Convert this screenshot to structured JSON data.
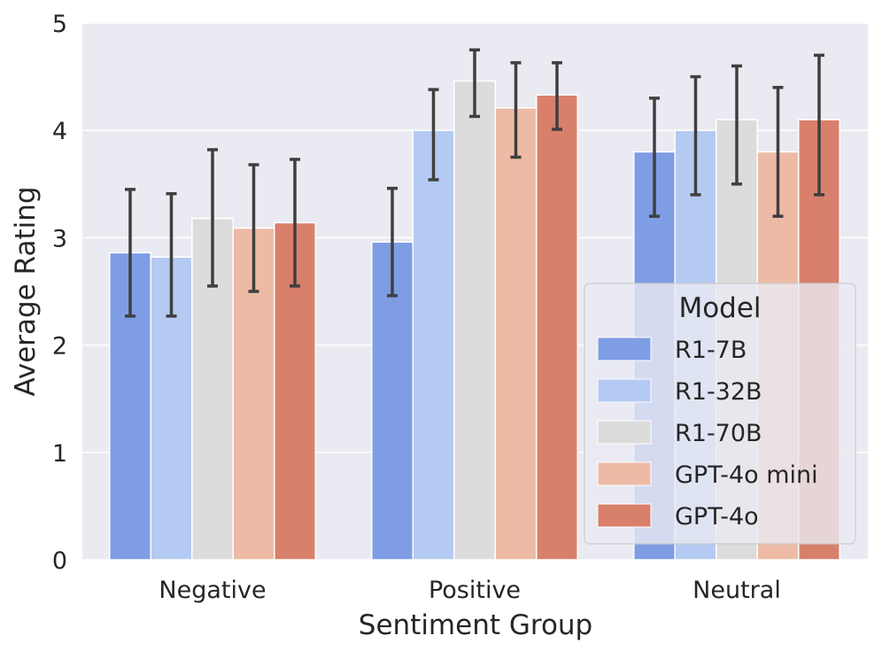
{
  "chart_data": {
    "type": "bar",
    "title": "",
    "xlabel": "Sentiment Group",
    "ylabel": "Average Rating",
    "ylim": [
      0,
      5
    ],
    "yticks": [
      "0",
      "1",
      "2",
      "3",
      "4",
      "5"
    ],
    "grid": true,
    "categories": [
      "Negative",
      "Positive",
      "Neutral"
    ],
    "legend": {
      "title": "Model",
      "position": "lower-right"
    },
    "series": [
      {
        "name": "R1-7B",
        "color": "#7f9de5",
        "values": [
          2.86,
          2.96,
          3.8
        ],
        "err_low": [
          2.27,
          2.46,
          3.2
        ],
        "err_high": [
          3.45,
          3.46,
          4.3
        ]
      },
      {
        "name": "R1-32B",
        "color": "#b4caf2",
        "values": [
          2.82,
          4.0,
          4.0
        ],
        "err_low": [
          2.27,
          3.54,
          3.4
        ],
        "err_high": [
          3.41,
          4.38,
          4.5
        ]
      },
      {
        "name": "R1-70B",
        "color": "#dcdcdc",
        "values": [
          3.18,
          4.46,
          4.1
        ],
        "err_low": [
          2.55,
          4.13,
          3.5
        ],
        "err_high": [
          3.82,
          4.75,
          4.6
        ]
      },
      {
        "name": "GPT-4o mini",
        "color": "#edbba5",
        "values": [
          3.09,
          4.21,
          3.8
        ],
        "err_low": [
          2.5,
          3.75,
          3.2
        ],
        "err_high": [
          3.68,
          4.63,
          4.4
        ]
      },
      {
        "name": "GPT-4o",
        "color": "#d8806c",
        "values": [
          3.14,
          4.33,
          4.1
        ],
        "err_low": [
          2.55,
          4.01,
          3.4
        ],
        "err_high": [
          3.73,
          4.63,
          4.7
        ]
      }
    ]
  }
}
